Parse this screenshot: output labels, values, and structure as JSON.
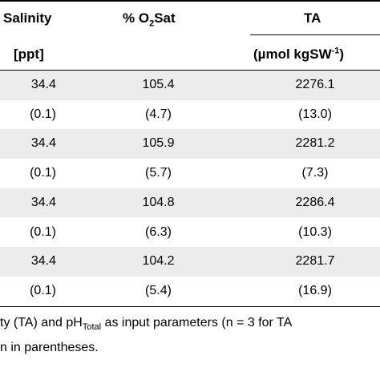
{
  "header": {
    "salinity": "Salinity",
    "o2sat_prefix": "% O",
    "o2sat_sub": "2",
    "o2sat_suffix": "Sat",
    "ta": "TA",
    "salinity_unit": "[ppt]",
    "ta_unit_prefix": "(µmol kgSW",
    "ta_unit_sup": "-1",
    "ta_unit_suffix": ")"
  },
  "rows": [
    {
      "salinity": "34.4",
      "o2sat": "105.4",
      "ta": "2276.1"
    },
    {
      "salinity": "(0.1)",
      "o2sat": "(4.7)",
      "ta": "(13.0)"
    },
    {
      "salinity": "34.4",
      "o2sat": "105.9",
      "ta": "2281.2"
    },
    {
      "salinity": "(0.1)",
      "o2sat": "(5.7)",
      "ta": "(7.3)"
    },
    {
      "salinity": "34.4",
      "o2sat": "104.8",
      "ta": "2286.4"
    },
    {
      "salinity": "(0.1)",
      "o2sat": "(6.3)",
      "ta": "(10.3)"
    },
    {
      "salinity": "34.4",
      "o2sat": "104.2",
      "ta": "2281.7"
    },
    {
      "salinity": "(0.1)",
      "o2sat": "(5.4)",
      "ta": "(16.9)"
    }
  ],
  "footnote": {
    "line1_prefix": "ty (TA) and pH",
    "line1_sub": "Total",
    "line1_suffix": " as input parameters (n = 3 for TA",
    "line2": "n in parentheses."
  }
}
